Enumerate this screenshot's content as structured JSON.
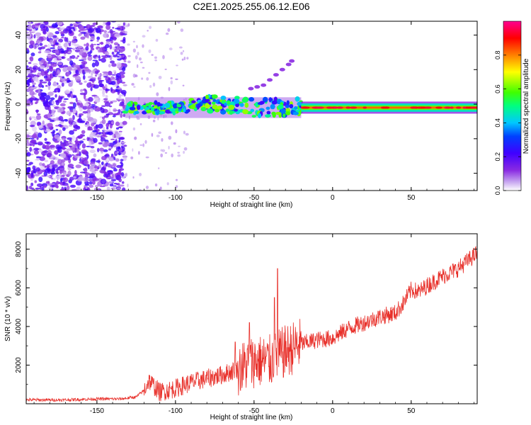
{
  "title": "C2E1.2025.255.06.12.E06",
  "colors": {
    "snr_line": "#e8302a",
    "colorbar_stops": [
      "#ffffff",
      "#8a2be2",
      "#5a00ff",
      "#0000ff",
      "#00c8ff",
      "#00ff80",
      "#80ff00",
      "#ffff00",
      "#ff8000",
      "#ff0000",
      "#ff0090"
    ]
  },
  "chart_data": [
    {
      "type": "heatmap",
      "title": "C2E1.2025.255.06.12.E06",
      "xlabel": "Height of straight line (km)",
      "ylabel": "Frequency (Hz)",
      "xlim": [
        -195,
        92
      ],
      "ylim": [
        -50,
        48
      ],
      "xticks": [
        -150,
        -100,
        -50,
        0,
        50
      ],
      "yticks": [
        -40,
        -20,
        0,
        20,
        40
      ],
      "xtick_labels": [
        "-150",
        "-100",
        "-50",
        "0",
        "50"
      ],
      "ytick_labels": [
        "-40",
        "-20",
        "0",
        "20",
        "40"
      ],
      "colorbar": {
        "label": "Normalized spectral amplitude",
        "range": [
          0,
          1
        ],
        "ticks": [
          0.0,
          0.2,
          0.4,
          0.6,
          0.8
        ],
        "tick_labels": [
          "0.0",
          "0.2",
          "0.4",
          "0.6",
          "0.8"
        ]
      },
      "features": [
        {
          "name": "noise",
          "x_range": [
            -195,
            -132
          ],
          "freq_range": [
            -50,
            48
          ],
          "amplitude": 0.15
        },
        {
          "name": "signal-onset",
          "x_range": [
            -132,
            -20
          ],
          "freq_center": -2,
          "freq_halfwidth": 4,
          "amplitude": 0.5
        },
        {
          "name": "stable-carrier",
          "x_range": [
            -20,
            92
          ],
          "freq_center": -2,
          "freq_halfwidth": 1.5,
          "amplitude": 0.9
        },
        {
          "name": "spur",
          "x_range": [
            -55,
            -25
          ],
          "freq_range": [
            8,
            26
          ],
          "amplitude": 0.2
        }
      ]
    },
    {
      "type": "line",
      "xlabel": "Height of straight line (km)",
      "ylabel": "SNR (10 * v/v)",
      "xlim": [
        -195,
        92
      ],
      "ylim": [
        0,
        8800
      ],
      "xticks": [
        -150,
        -100,
        -50,
        0,
        50
      ],
      "yticks": [
        2000,
        4000,
        6000,
        8000
      ],
      "xtick_labels": [
        "-150",
        "-100",
        "-50",
        "0",
        "50"
      ],
      "ytick_labels": [
        "2000",
        "4000",
        "6000",
        "8000"
      ],
      "series": [
        {
          "name": "SNR",
          "x": [
            -195,
            -170,
            -150,
            -135,
            -125,
            -120,
            -117,
            -110,
            -100,
            -90,
            -80,
            -70,
            -60,
            -50,
            -40,
            -30,
            -20,
            -10,
            0,
            10,
            20,
            30,
            40,
            45,
            50,
            55,
            60,
            70,
            80,
            92
          ],
          "y": [
            200,
            200,
            250,
            250,
            350,
            700,
            1200,
            600,
            800,
            1100,
            1300,
            1500,
            1800,
            2200,
            2200,
            2700,
            3100,
            3300,
            3400,
            3900,
            4200,
            4500,
            4700,
            5200,
            5900,
            5800,
            6100,
            6600,
            7000,
            7800
          ]
        }
      ],
      "spikes": [
        {
          "x": -35,
          "y": 7000
        },
        {
          "x": -37,
          "y": 5500
        },
        {
          "x": -53,
          "y": 4200
        },
        {
          "x": -62,
          "y": 3200
        }
      ],
      "noise_amplitude": [
        {
          "x_range": [
            -195,
            -120
          ],
          "amp": 80
        },
        {
          "x_range": [
            -120,
            -60
          ],
          "amp": 500
        },
        {
          "x_range": [
            -60,
            -20
          ],
          "amp": 1400
        },
        {
          "x_range": [
            -20,
            92
          ],
          "amp": 450
        }
      ]
    }
  ]
}
